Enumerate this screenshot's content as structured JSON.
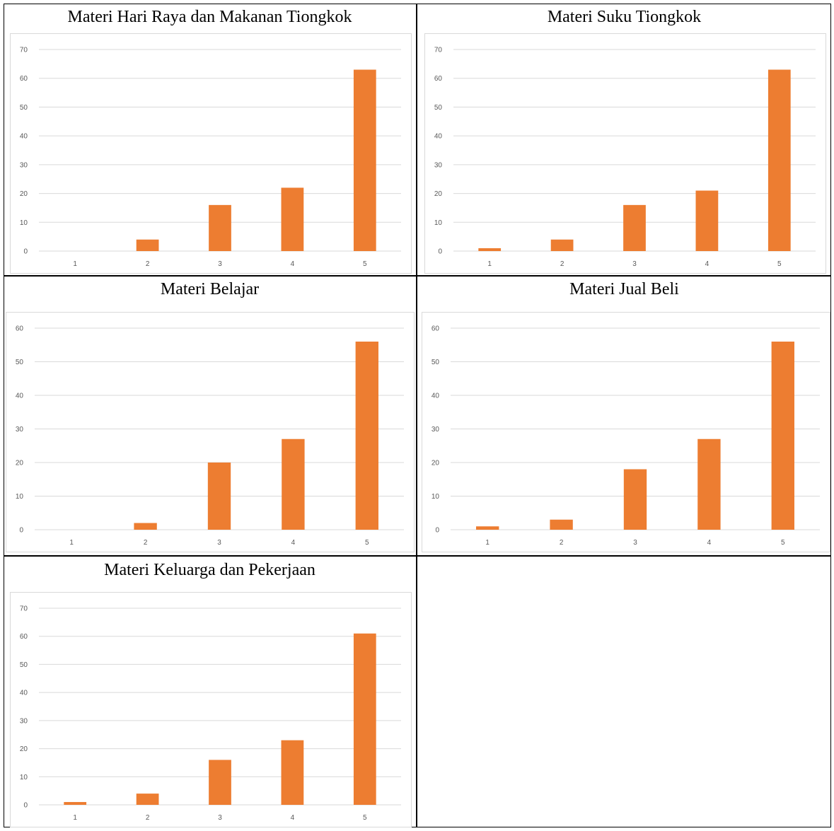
{
  "bar_color": "#ED7D31",
  "grid_color": "#D9D9D9",
  "chart_data": [
    {
      "type": "bar",
      "title": "Materi Hari Raya dan Makanan Tiongkok",
      "categories": [
        "1",
        "2",
        "3",
        "4",
        "5"
      ],
      "values": [
        0,
        4,
        16,
        22,
        63
      ],
      "ylim": [
        0,
        70
      ],
      "yticks": [
        "0",
        "10",
        "20",
        "30",
        "40",
        "50",
        "60",
        "70"
      ],
      "grid": true
    },
    {
      "type": "bar",
      "title": "Materi Suku Tiongkok",
      "categories": [
        "1",
        "2",
        "3",
        "4",
        "5"
      ],
      "values": [
        1,
        4,
        16,
        21,
        63
      ],
      "ylim": [
        0,
        70
      ],
      "yticks": [
        "0",
        "10",
        "20",
        "30",
        "40",
        "50",
        "60",
        "70"
      ],
      "grid": true
    },
    {
      "type": "bar",
      "title": "Materi Belajar",
      "categories": [
        "1",
        "2",
        "3",
        "4",
        "5"
      ],
      "values": [
        0,
        2,
        20,
        27,
        56
      ],
      "ylim": [
        0,
        60
      ],
      "yticks": [
        "0",
        "10",
        "20",
        "30",
        "40",
        "50",
        "60"
      ],
      "grid": true
    },
    {
      "type": "bar",
      "title": "Materi Jual Beli",
      "categories": [
        "1",
        "2",
        "3",
        "4",
        "5"
      ],
      "values": [
        1,
        3,
        18,
        27,
        56
      ],
      "ylim": [
        0,
        60
      ],
      "yticks": [
        "0",
        "10",
        "20",
        "30",
        "40",
        "50",
        "60"
      ],
      "grid": true
    },
    {
      "type": "bar",
      "title": "Materi Keluarga dan Pekerjaan",
      "categories": [
        "1",
        "2",
        "3",
        "4",
        "5"
      ],
      "values": [
        1,
        4,
        16,
        23,
        61
      ],
      "ylim": [
        0,
        70
      ],
      "yticks": [
        "0",
        "10",
        "20",
        "30",
        "40",
        "50",
        "60",
        "70"
      ],
      "grid": true
    }
  ]
}
